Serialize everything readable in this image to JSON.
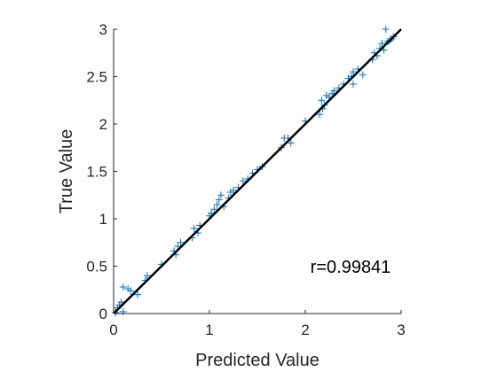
{
  "chart_data": {
    "type": "scatter",
    "title": "",
    "xlabel": "Predicted Value",
    "ylabel": "True Value",
    "xlim": [
      0,
      3
    ],
    "ylim": [
      0,
      3
    ],
    "xticks": [
      0,
      1,
      2,
      3
    ],
    "yticks": [
      0,
      0.5,
      1,
      1.5,
      2,
      2.5,
      3
    ],
    "grid": false,
    "legend": "none",
    "annotation": "r=0.99841",
    "fit_line": {
      "x": [
        0,
        3
      ],
      "y": [
        0,
        3
      ],
      "color": "#000000"
    },
    "series": [
      {
        "marker": "plus",
        "color": "#0072BD",
        "points": [
          [
            0.02,
            0.01
          ],
          [
            0.04,
            0.06
          ],
          [
            0.06,
            0.09
          ],
          [
            0.08,
            0.12
          ],
          [
            0.1,
            0.02
          ],
          [
            0.1,
            0.28
          ],
          [
            0.15,
            0.26
          ],
          [
            0.18,
            0.24
          ],
          [
            0.25,
            0.2
          ],
          [
            0.33,
            0.35
          ],
          [
            0.35,
            0.4
          ],
          [
            0.5,
            0.52
          ],
          [
            0.63,
            0.66
          ],
          [
            0.65,
            0.62
          ],
          [
            0.67,
            0.71
          ],
          [
            0.7,
            0.75
          ],
          [
            0.82,
            0.8
          ],
          [
            0.84,
            0.9
          ],
          [
            0.88,
            0.85
          ],
          [
            0.9,
            0.93
          ],
          [
            1.0,
            1.03
          ],
          [
            1.02,
            1.06
          ],
          [
            1.05,
            1.1
          ],
          [
            1.08,
            1.15
          ],
          [
            1.1,
            1.2
          ],
          [
            1.12,
            1.25
          ],
          [
            1.15,
            1.13
          ],
          [
            1.2,
            1.22
          ],
          [
            1.22,
            1.28
          ],
          [
            1.25,
            1.3
          ],
          [
            1.3,
            1.33
          ],
          [
            1.35,
            1.4
          ],
          [
            1.4,
            1.42
          ],
          [
            1.45,
            1.48
          ],
          [
            1.5,
            1.52
          ],
          [
            1.55,
            1.55
          ],
          [
            1.75,
            1.75
          ],
          [
            1.78,
            1.85
          ],
          [
            1.82,
            1.85
          ],
          [
            1.85,
            1.8
          ],
          [
            2.0,
            2.03
          ],
          [
            2.15,
            2.1
          ],
          [
            2.17,
            2.25
          ],
          [
            2.2,
            2.2
          ],
          [
            2.22,
            2.3
          ],
          [
            2.25,
            2.28
          ],
          [
            2.28,
            2.32
          ],
          [
            2.3,
            2.35
          ],
          [
            2.35,
            2.38
          ],
          [
            2.4,
            2.42
          ],
          [
            2.45,
            2.48
          ],
          [
            2.48,
            2.5
          ],
          [
            2.5,
            2.55
          ],
          [
            2.55,
            2.58
          ],
          [
            2.6,
            2.52
          ],
          [
            2.7,
            2.68
          ],
          [
            2.72,
            2.75
          ],
          [
            2.75,
            2.72
          ],
          [
            2.78,
            2.8
          ],
          [
            2.8,
            2.85
          ],
          [
            2.82,
            2.78
          ],
          [
            2.84,
            3.0
          ],
          [
            2.86,
            2.87
          ],
          [
            2.88,
            2.88
          ],
          [
            2.9,
            2.9
          ],
          [
            2.92,
            2.92
          ],
          [
            2.5,
            2.42
          ],
          [
            2.18,
            2.16
          ]
        ]
      }
    ]
  }
}
